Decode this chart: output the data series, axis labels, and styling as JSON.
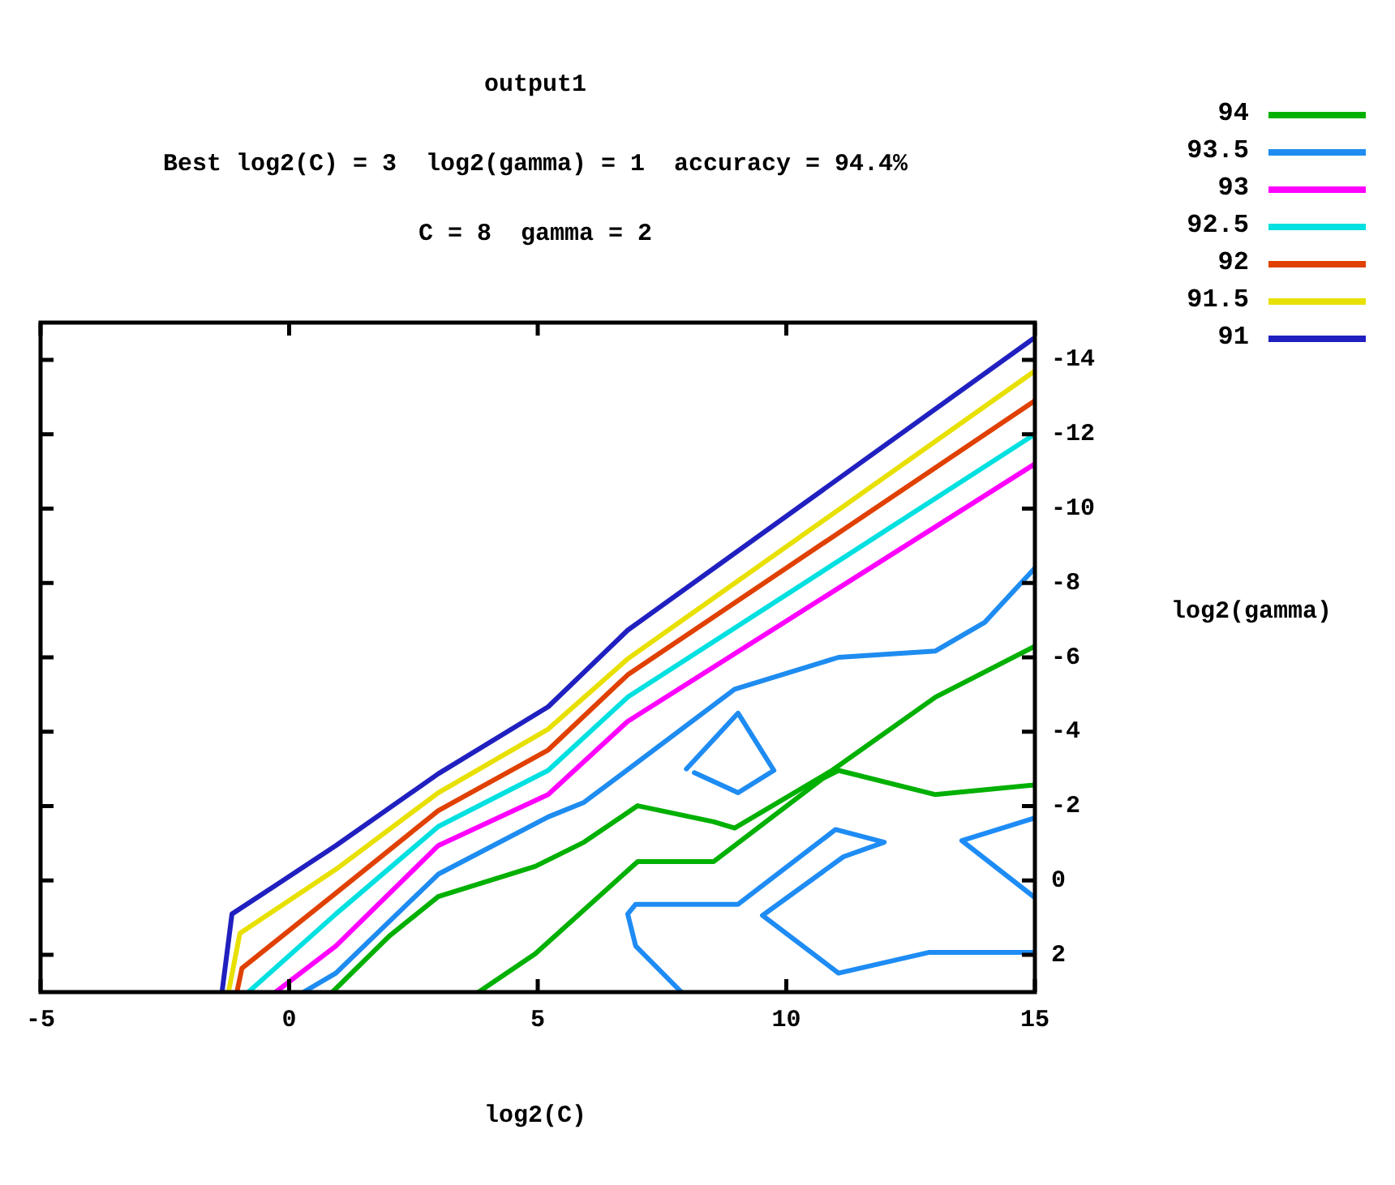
{
  "chart_data": {
    "type": "line",
    "title": "output1",
    "subtitle": "Best log2(C) = 3  log2(gamma) = 1  accuracy = 94.4%\nC = 8  gamma = 2",
    "xlabel": "log2(C)",
    "ylabel": "log2(gamma)",
    "xlim": [
      -5,
      15
    ],
    "xticks": [
      -5,
      0,
      5,
      10,
      15
    ],
    "ylim": [
      3,
      -15
    ],
    "yticks": [
      -14,
      -12,
      -10,
      -8,
      -6,
      -4,
      -2,
      0,
      2
    ],
    "grid": false,
    "legend": "top right",
    "marker": "none",
    "line_style": "solid",
    "series": [
      {
        "name": "94",
        "color": "#00b000",
        "x": [
          0.87,
          2.01,
          3.0,
          4.95,
          5.93,
          7.01,
          8.54,
          8.96,
          10.92,
          13.0,
          15
        ],
        "values": [
          3.0,
          1.5,
          0.43,
          -0.38,
          -1.03,
          -2.01,
          -1.58,
          -1.41,
          -2.96,
          -4.93,
          -6.3
        ]
      },
      {
        "color": "#00b002",
        "x": [
          3.81,
          4.95,
          7.01,
          8.54,
          10.73,
          11.05,
          13.0,
          15
        ],
        "values": [
          3.0,
          1.97,
          -0.51,
          -0.51,
          -2.74,
          -2.96,
          -2.31,
          -2.57
        ]
      },
      {
        "name": "93.5",
        "color": "#1e8cf0",
        "x": [
          0.29,
          0.94,
          3.0,
          5.21,
          5.93,
          8.96,
          11.05,
          13.0,
          13.99,
          15
        ],
        "values": [
          3.0,
          2.49,
          -0.17,
          -1.71,
          -2.1,
          -5.14,
          -6.0,
          -6.17,
          -6.94,
          -8.4
        ]
      },
      {
        "color": "#1e8cf2",
        "x": [
          7.99,
          9.03,
          9.75,
          9.03,
          8.15
        ],
        "values": [
          -3.0,
          -4.5,
          -2.96,
          -2.36,
          -2.9
        ]
      },
      {
        "color": "#1e8cf4",
        "x": [
          7.89,
          6.97,
          6.81,
          6.97,
          9.03,
          10.99,
          11.97,
          11.15,
          9.52,
          11.05,
          12.88,
          15
        ],
        "values": [
          3.0,
          1.76,
          0.9,
          0.64,
          0.64,
          -1.37,
          -1.03,
          -0.64,
          0.94,
          2.49,
          1.93,
          1.93
        ]
      },
      {
        "color": "#1e8cf6",
        "x": [
          14.97,
          13.53,
          14.97
        ],
        "values": [
          -1.67,
          -1.07,
          0.43
        ]
      },
      {
        "name": "93",
        "color": "#ff00ff",
        "x": [
          -0.27,
          0.94,
          3.0,
          5.21,
          6.81,
          15
        ],
        "values": [
          3.0,
          1.76,
          -0.94,
          -2.31,
          -4.28,
          -11.2
        ]
      },
      {
        "name": "92.5",
        "color": "#00e0e0",
        "x": [
          -0.82,
          0.94,
          3.0,
          5.21,
          6.81,
          15
        ],
        "values": [
          3.0,
          0.9,
          -1.45,
          -2.96,
          -4.93,
          -12.0
        ]
      },
      {
        "name": "92",
        "color": "#e04000",
        "x": [
          -1.05,
          -0.95,
          0.94,
          3.0,
          5.21,
          6.81,
          15
        ],
        "values": [
          3.0,
          2.36,
          0.34,
          -1.88,
          -3.51,
          -5.53,
          -12.9
        ]
      },
      {
        "name": "91.5",
        "color": "#e8e000",
        "x": [
          -1.22,
          -0.99,
          0.94,
          3.0,
          5.21,
          6.81,
          15
        ],
        "values": [
          3.0,
          1.42,
          -0.3,
          -2.36,
          -4.07,
          -5.96,
          -13.7
        ]
      },
      {
        "name": "91",
        "color": "#2020c0",
        "x": [
          -1.35,
          -1.15,
          -0.27,
          0.94,
          3.0,
          5.21,
          6.81,
          15
        ],
        "values": [
          3.0,
          0.9,
          0.13,
          -0.94,
          -2.87,
          -4.67,
          -6.73,
          -14.6
        ]
      }
    ]
  }
}
